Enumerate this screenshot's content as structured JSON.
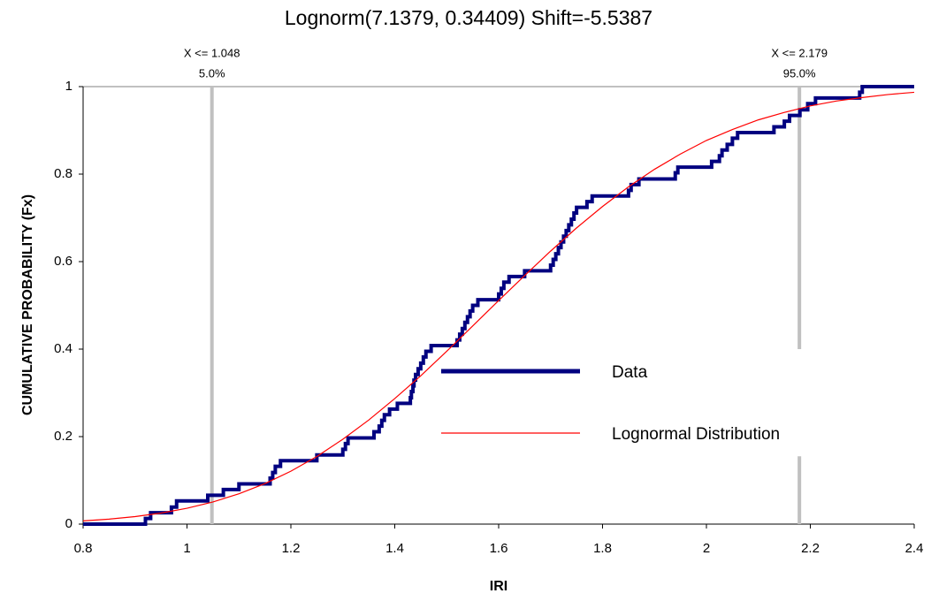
{
  "chart_data": {
    "type": "line",
    "title": "Lognorm(7.1379, 0.34409) Shift=-5.5387",
    "x_label": "IRI",
    "y_label": "CUMULATIVE PROBABILITY (Fx)",
    "xlim": [
      0.8,
      2.4
    ],
    "ylim": [
      0,
      1
    ],
    "xticks": [
      0.8,
      1,
      1.2,
      1.4,
      1.6,
      1.8,
      2,
      2.2,
      2.4
    ],
    "yticks": [
      0,
      0.2,
      0.4,
      0.6,
      0.8,
      1
    ],
    "series": [
      {
        "name": "Data",
        "color": "#000080",
        "step": true,
        "x": [
          0.8,
          0.92,
          0.93,
          0.97,
          0.98,
          1.04,
          1.07,
          1.1,
          1.16,
          1.165,
          1.17,
          1.18,
          1.25,
          1.3,
          1.305,
          1.31,
          1.36,
          1.37,
          1.375,
          1.38,
          1.39,
          1.405,
          1.43,
          1.432,
          1.435,
          1.437,
          1.44,
          1.445,
          1.45,
          1.455,
          1.46,
          1.47,
          1.52,
          1.525,
          1.53,
          1.535,
          1.54,
          1.545,
          1.55,
          1.56,
          1.6,
          1.605,
          1.61,
          1.62,
          1.65,
          1.7,
          1.705,
          1.71,
          1.715,
          1.72,
          1.725,
          1.73,
          1.735,
          1.74,
          1.745,
          1.75,
          1.77,
          1.78,
          1.85,
          1.855,
          1.87,
          1.94,
          1.945,
          2.01,
          2.025,
          2.03,
          2.04,
          2.05,
          2.06,
          2.13,
          2.15,
          2.16,
          2.18,
          2.195,
          2.21,
          2.295,
          2.3,
          2.4
        ],
        "values": [
          0,
          0.013,
          0.026,
          0.039,
          0.053,
          0.066,
          0.079,
          0.092,
          0.105,
          0.118,
          0.132,
          0.145,
          0.158,
          0.171,
          0.184,
          0.197,
          0.211,
          0.224,
          0.237,
          0.25,
          0.263,
          0.276,
          0.289,
          0.303,
          0.316,
          0.329,
          0.342,
          0.355,
          0.368,
          0.382,
          0.395,
          0.408,
          0.421,
          0.434,
          0.447,
          0.461,
          0.474,
          0.487,
          0.5,
          0.513,
          0.526,
          0.539,
          0.553,
          0.566,
          0.579,
          0.592,
          0.605,
          0.618,
          0.632,
          0.645,
          0.658,
          0.671,
          0.684,
          0.697,
          0.711,
          0.724,
          0.737,
          0.75,
          0.763,
          0.776,
          0.789,
          0.803,
          0.816,
          0.829,
          0.842,
          0.855,
          0.868,
          0.882,
          0.895,
          0.908,
          0.921,
          0.934,
          0.947,
          0.961,
          0.974,
          0.987,
          1,
          1
        ]
      },
      {
        "name": "Lognormal Distribution",
        "color": "#ff0000",
        "step": false,
        "x": [
          0.8,
          0.85,
          0.9,
          0.95,
          1.0,
          1.05,
          1.1,
          1.15,
          1.2,
          1.25,
          1.3,
          1.35,
          1.4,
          1.45,
          1.5,
          1.55,
          1.6,
          1.65,
          1.7,
          1.75,
          1.8,
          1.85,
          1.9,
          1.95,
          2.0,
          2.05,
          2.1,
          2.15,
          2.2,
          2.25,
          2.3,
          2.35,
          2.4
        ],
        "values": [
          0.0073,
          0.0114,
          0.0172,
          0.0253,
          0.0363,
          0.0507,
          0.0694,
          0.0926,
          0.121,
          0.1546,
          0.194,
          0.238,
          0.287,
          0.339,
          0.395,
          0.453,
          0.511,
          0.568,
          0.624,
          0.677,
          0.726,
          0.771,
          0.811,
          0.846,
          0.877,
          0.902,
          0.924,
          0.941,
          0.956,
          0.967,
          0.975,
          0.982,
          0.987
        ]
      }
    ],
    "markers": [
      {
        "x": 1.048,
        "label": "X <= 1.048",
        "prob_label": "5.0%"
      },
      {
        "x": 2.179,
        "label": "X <= 2.179",
        "prob_label": "95.0%"
      }
    ],
    "marker_color": "#c0c0c0"
  }
}
